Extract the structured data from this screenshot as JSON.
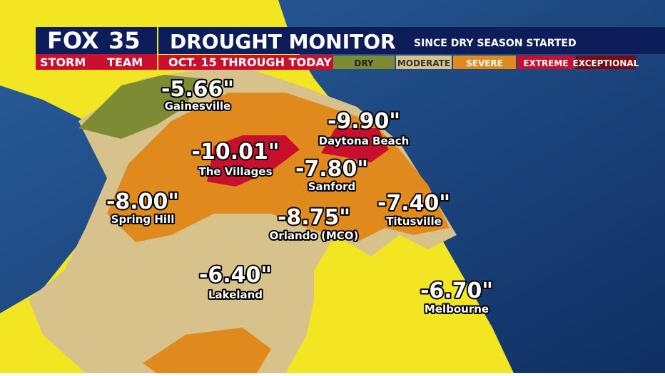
{
  "header": {
    "logo": "FOX",
    "logo_number": "35",
    "team": "STORM",
    "team_end": "TEAM",
    "title": "DROUGHT MONITOR",
    "subtitle": "SINCE DRY SEASON STARTED",
    "period": "OCT. 15 THROUGH TODAY"
  },
  "legend": [
    {
      "label": "DRY",
      "color": "#7d8c34"
    },
    {
      "label": "MODERATE",
      "color": "#d8c28c"
    },
    {
      "label": "SEVERE",
      "color": "#e0891c"
    },
    {
      "label": "EXTREME",
      "color": "#c8102e"
    },
    {
      "label": "EXCEPTIONAL",
      "color": "#7a0a12"
    }
  ],
  "cities": [
    {
      "name": "Gainesville",
      "value": "-5.66\""
    },
    {
      "name": "The Villages",
      "value": "-10.01\""
    },
    {
      "name": "Daytona Beach",
      "value": "-9.90\""
    },
    {
      "name": "Sanford",
      "value": "-7.80\""
    },
    {
      "name": "Spring Hill",
      "value": "-8.00\""
    },
    {
      "name": "Orlando (MCO)",
      "value": "-8.75\""
    },
    {
      "name": "Titusville",
      "value": "-7.40\""
    },
    {
      "name": "Lakeland",
      "value": "-6.40\""
    },
    {
      "name": "Melbourne",
      "value": "-6.70\""
    }
  ]
}
